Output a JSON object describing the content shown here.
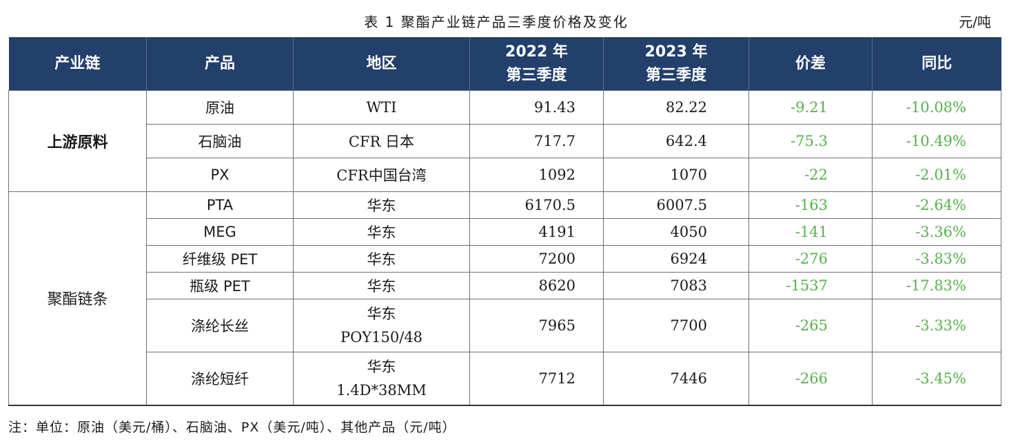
{
  "caption": "表 1  聚酯产业链产品三季度价格及变化",
  "unit": "元/吨",
  "headers": {
    "chain": "产业链",
    "product": "产品",
    "region": "地区",
    "q2022_l1": "2022 年",
    "q2022_l2": "第三季度",
    "q2023_l1": "2023 年",
    "q2023_l2": "第三季度",
    "diff": "价差",
    "yoy": "同比"
  },
  "groups": {
    "upstream": "上游原料",
    "polyester": "聚酯链条"
  },
  "rows": [
    {
      "product": "原油",
      "region": "WTI",
      "y2022": "91.43",
      "y2023": "82.22",
      "diff": "-9.21",
      "yoy": "-10.08%"
    },
    {
      "product": "石脑油",
      "region": "CFR 日本",
      "y2022": "717.7",
      "y2023": "642.4",
      "diff": "-75.3",
      "yoy": "-10.49%"
    },
    {
      "product": "PX",
      "region": "CFR中国台湾",
      "y2022": "1092",
      "y2023": "1070",
      "diff": "-22",
      "yoy": "-2.01%"
    },
    {
      "product": "PTA",
      "region": "华东",
      "y2022": "6170.5",
      "y2023": "6007.5",
      "diff": "-163",
      "yoy": "-2.64%"
    },
    {
      "product": "MEG",
      "region": "华东",
      "y2022": "4191",
      "y2023": "4050",
      "diff": "-141",
      "yoy": "-3.36%"
    },
    {
      "product": "纤维级 PET",
      "region": "华东",
      "y2022": "7200",
      "y2023": "6924",
      "diff": "-276",
      "yoy": "-3.83%"
    },
    {
      "product": "瓶级 PET",
      "region": "华东",
      "y2022": "8620",
      "y2023": "7083",
      "diff": "-1537",
      "yoy": "-17.83%"
    },
    {
      "product": "涤纶长丝",
      "region_l1": "华东",
      "region_l2": "POY150/48",
      "y2022": "7965",
      "y2023": "7700",
      "diff": "-265",
      "yoy": "-3.33%"
    },
    {
      "product": "涤纶短纤",
      "region_l1": "华东",
      "region_l2": "1.4D*38MM",
      "y2022": "7712",
      "y2023": "7446",
      "diff": "-266",
      "yoy": "-3.45%"
    }
  ],
  "note": "注：单位：原油（美元/桶）、石脑油、PX（美元/吨）、其他产品（元/吨）",
  "colors": {
    "header_bg": "#233f6b",
    "negative": "#55b04a"
  }
}
